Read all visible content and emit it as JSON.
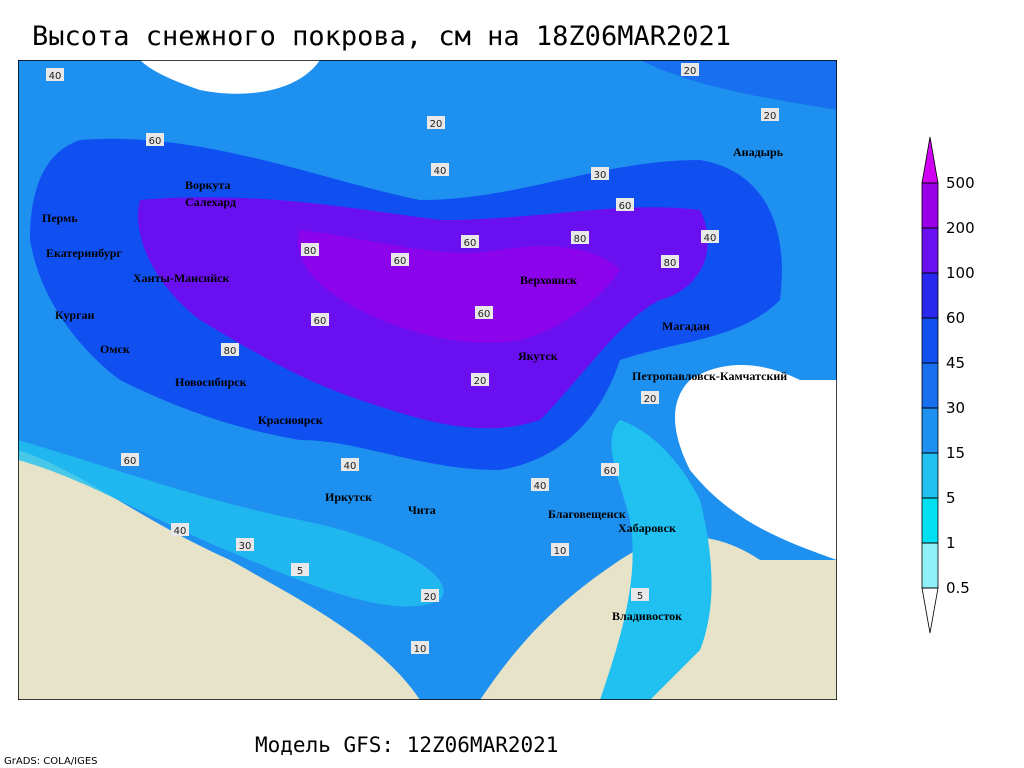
{
  "title": "Высота снежного покрова, см на 18Z06MAR2021",
  "subtitle": "Модель GFS: 12Z06MAR2021",
  "credit": "GrADS: COLA/IGES",
  "cities": [
    "Воркута",
    "Салехард",
    "Пермь",
    "Екатеринбург",
    "Ханты-Мансийск",
    "Курган",
    "Омск",
    "Новосибирск",
    "Красноярск",
    "Иркутск",
    "Чита",
    "Благовещенск",
    "Хабаровск",
    "Владивосток",
    "Якутск",
    "Верхоянск",
    "Магадан",
    "Петропавловск-Камчатский",
    "Анадырь"
  ],
  "contour_labels": [
    40,
    60,
    80,
    60,
    40,
    20,
    30,
    20,
    60,
    80,
    60,
    40,
    20,
    60,
    80,
    60,
    40,
    20,
    5,
    10,
    20,
    40,
    60,
    80,
    60,
    40,
    30,
    20,
    5,
    10
  ],
  "legend": {
    "levels": [
      0.5,
      1,
      5,
      15,
      30,
      45,
      60,
      100,
      200,
      500
    ],
    "colors": [
      "#ffffff",
      "#90f0f8",
      "#00e0f0",
      "#20c0f0",
      "#1e90f0",
      "#1870f0",
      "#1050f0",
      "#2828f0",
      "#6a10f0",
      "#9a00e8",
      "#d000f0"
    ]
  }
}
